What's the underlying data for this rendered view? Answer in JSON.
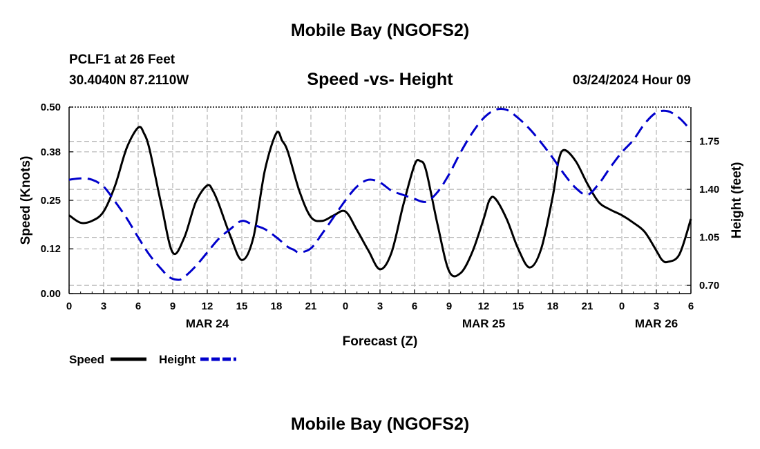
{
  "title": "Mobile Bay (NGOFS2)",
  "bottom_title": "Mobile Bay (NGOFS2)",
  "station": "PCLF1 at 26 Feet",
  "coords": "30.4040N  87.2110W",
  "datetime": "03/24/2024 Hour 09",
  "colors": {
    "speed": "#000000",
    "height": "#0000cc",
    "grid": "#b4b4b4"
  },
  "chart_data": {
    "type": "line",
    "title": "Speed -vs- Height",
    "xlabel": "Forecast (Z)",
    "ylabel_left": "Speed (Knots)",
    "ylabel_right": "Height (feet)",
    "x_unit": "hours from 2024-03-24 00Z",
    "xlim": [
      0,
      54
    ],
    "ylim_left": [
      0,
      0.5
    ],
    "ylim_right": [
      0.64,
      2.0
    ],
    "x_ticks": [
      0,
      3,
      6,
      9,
      12,
      15,
      18,
      21,
      24,
      27,
      30,
      33,
      36,
      39,
      42,
      45,
      48,
      51,
      54
    ],
    "x_tick_labels": [
      "0",
      "3",
      "6",
      "9",
      "12",
      "15",
      "18",
      "21",
      "0",
      "3",
      "6",
      "9",
      "12",
      "15",
      "18",
      "21",
      "0",
      "3",
      "6"
    ],
    "date_labels": [
      {
        "x": 12,
        "label": "MAR 24"
      },
      {
        "x": 36,
        "label": "MAR 25"
      },
      {
        "x": 51,
        "label": "MAR 26"
      }
    ],
    "y_left_ticks": [
      0.0,
      0.12,
      0.25,
      0.38,
      0.5
    ],
    "y_left_tick_labels": [
      "0.00",
      "0.12",
      "0.25",
      "0.38",
      "0.50"
    ],
    "y_right_ticks": [
      0.7,
      1.05,
      1.4,
      1.75
    ],
    "y_right_tick_labels": [
      "0.70",
      "1.05",
      "1.40",
      "1.75"
    ],
    "grid": true,
    "legend": [
      "Speed",
      "Height"
    ],
    "legend_position": "bottom-left",
    "series": [
      {
        "name": "Speed",
        "axis": "left",
        "style": "solid",
        "x": [
          0,
          1,
          2,
          3,
          4,
          5,
          6,
          6.5,
          7,
          8,
          9,
          10,
          11,
          12,
          12.5,
          13,
          14,
          15,
          16,
          17,
          18,
          18.5,
          19,
          20,
          21,
          22,
          23,
          24,
          25,
          26,
          27,
          28,
          29,
          30,
          30.5,
          31,
          32,
          33,
          34,
          35,
          36,
          36.5,
          37,
          38,
          39,
          40,
          41,
          42,
          42.5,
          43,
          44,
          45,
          46,
          47,
          48,
          49,
          50,
          51,
          51.5,
          52,
          53,
          54
        ],
        "y": [
          0.21,
          0.19,
          0.195,
          0.22,
          0.29,
          0.39,
          0.445,
          0.43,
          0.385,
          0.24,
          0.11,
          0.15,
          0.245,
          0.29,
          0.275,
          0.24,
          0.155,
          0.09,
          0.15,
          0.33,
          0.43,
          0.41,
          0.38,
          0.275,
          0.205,
          0.195,
          0.21,
          0.22,
          0.17,
          0.115,
          0.065,
          0.11,
          0.235,
          0.345,
          0.355,
          0.33,
          0.185,
          0.06,
          0.055,
          0.11,
          0.2,
          0.25,
          0.255,
          0.2,
          0.12,
          0.07,
          0.12,
          0.26,
          0.355,
          0.385,
          0.355,
          0.295,
          0.245,
          0.225,
          0.21,
          0.19,
          0.165,
          0.115,
          0.09,
          0.085,
          0.105,
          0.2
        ]
      },
      {
        "name": "Height",
        "axis": "right",
        "style": "dashed",
        "x": [
          0,
          1,
          2,
          3,
          4,
          5,
          6,
          7,
          8,
          8.7,
          9.5,
          10,
          11,
          12,
          13,
          14,
          15,
          16,
          17,
          18,
          19,
          19.5,
          20,
          21,
          22,
          23,
          24,
          25,
          26,
          27,
          28,
          29,
          30,
          31,
          32,
          33,
          34,
          35,
          36,
          37,
          38,
          39,
          40,
          41,
          42,
          43,
          44,
          45,
          46,
          47,
          48,
          49,
          50,
          51,
          52,
          53,
          54
        ],
        "y": [
          1.47,
          1.48,
          1.47,
          1.42,
          1.31,
          1.19,
          1.05,
          0.92,
          0.82,
          0.76,
          0.74,
          0.76,
          0.84,
          0.94,
          1.04,
          1.11,
          1.17,
          1.14,
          1.11,
          1.05,
          0.98,
          0.96,
          0.94,
          0.97,
          1.08,
          1.2,
          1.32,
          1.42,
          1.47,
          1.45,
          1.39,
          1.36,
          1.33,
          1.31,
          1.38,
          1.51,
          1.67,
          1.81,
          1.92,
          1.98,
          1.98,
          1.92,
          1.84,
          1.74,
          1.63,
          1.51,
          1.41,
          1.36,
          1.44,
          1.56,
          1.67,
          1.76,
          1.88,
          1.96,
          1.97,
          1.92,
          1.83
        ]
      }
    ]
  }
}
